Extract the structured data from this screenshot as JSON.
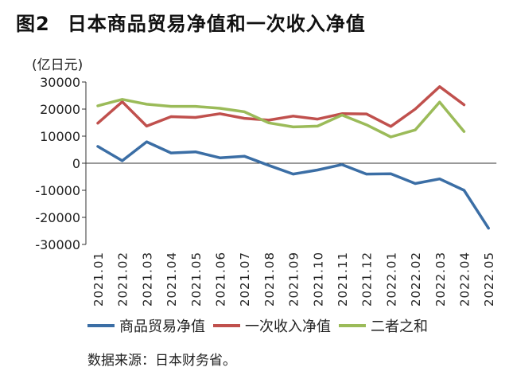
{
  "figure": {
    "number": "图2",
    "title": "日本商品贸易净值和一次收入净值",
    "unit": "(亿日元)",
    "source": "数据来源：日本财务省。"
  },
  "chart_data": {
    "type": "line",
    "title": "日本商品贸易净值和一次收入净值",
    "ylabel": "(亿日元)",
    "xlabel": "",
    "ylim": [
      -30000,
      30000
    ],
    "yticks": [
      30000,
      20000,
      10000,
      0,
      -10000,
      -20000,
      -30000
    ],
    "grid": false,
    "legend_position": "bottom",
    "categories": [
      "2021.01",
      "2021.02",
      "2021.03",
      "2021.04",
      "2021.05",
      "2021.06",
      "2021.07",
      "2021.08",
      "2021.09",
      "2021.10",
      "2021.11",
      "2021.12",
      "2022.01",
      "2022.02",
      "2022.03",
      "2022.04",
      "2022.05"
    ],
    "series": [
      {
        "name": "商品贸易净值",
        "color": "#3b6ea5",
        "values": [
          6200,
          900,
          7900,
          3800,
          4200,
          2000,
          2600,
          -800,
          -4000,
          -2500,
          -500,
          -4000,
          -3900,
          -7500,
          -5800,
          -10000,
          -24000
        ]
      },
      {
        "name": "一次收入净值",
        "color": "#c0504d",
        "values": [
          14800,
          22700,
          13700,
          17200,
          16900,
          18300,
          16600,
          15900,
          17400,
          16300,
          18300,
          18200,
          13600,
          20000,
          28300,
          21600,
          null
        ]
      },
      {
        "name": "二者之和",
        "color": "#9bbb59",
        "values": [
          21200,
          23600,
          21800,
          21000,
          21000,
          20300,
          19000,
          14900,
          13400,
          13700,
          17800,
          14200,
          9700,
          12300,
          22600,
          11700,
          null
        ]
      }
    ]
  }
}
